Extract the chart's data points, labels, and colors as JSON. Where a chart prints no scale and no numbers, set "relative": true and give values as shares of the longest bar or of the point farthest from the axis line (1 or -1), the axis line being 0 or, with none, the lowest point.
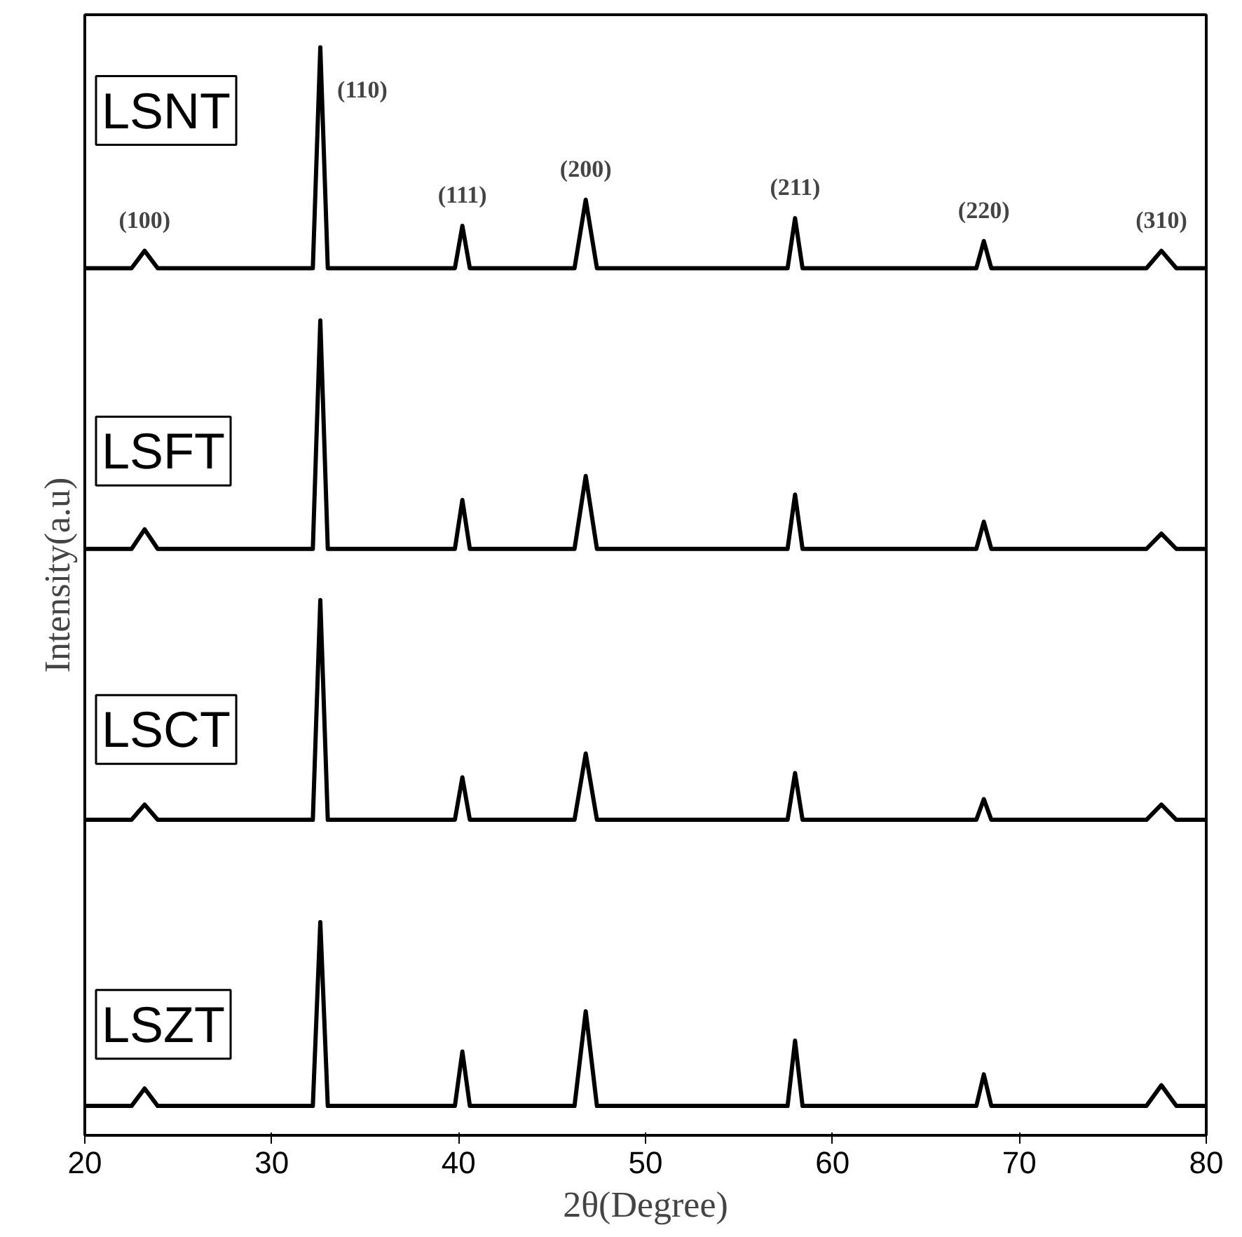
{
  "chart_data": {
    "type": "line",
    "relative": true,
    "xlabel": "2θ(Degree)",
    "ylabel": "Intensity(a.u)",
    "xlim": [
      20,
      80
    ],
    "xticks": [
      20,
      30,
      40,
      50,
      60,
      70,
      80
    ],
    "grid": false,
    "legend": false,
    "marker": "none",
    "line_style": "solid",
    "x": [
      20,
      22.5,
      23.2,
      23.9,
      32.2,
      32.6,
      33.0,
      39.8,
      40.2,
      40.6,
      46.2,
      46.8,
      47.4,
      57.6,
      58.0,
      58.4,
      67.7,
      68.1,
      68.5,
      76.8,
      77.6,
      78.4,
      80
    ],
    "series": [
      {
        "name": "LSNT",
        "color": "#000000",
        "values": [
          0.797,
          0.797,
          0.813,
          0.797,
          0.797,
          1.0,
          0.797,
          0.797,
          0.836,
          0.797,
          0.797,
          0.86,
          0.797,
          0.797,
          0.843,
          0.797,
          0.797,
          0.822,
          0.797,
          0.797,
          0.813,
          0.797,
          0.797
        ]
      },
      {
        "name": "LSFT",
        "color": "#000000",
        "values": [
          0.539,
          0.539,
          0.557,
          0.539,
          0.539,
          0.749,
          0.539,
          0.539,
          0.584,
          0.539,
          0.539,
          0.606,
          0.539,
          0.539,
          0.589,
          0.539,
          0.539,
          0.564,
          0.539,
          0.539,
          0.553,
          0.539,
          0.539
        ]
      },
      {
        "name": "LSCT",
        "color": "#000000",
        "values": [
          0.29,
          0.29,
          0.304,
          0.29,
          0.29,
          0.492,
          0.29,
          0.29,
          0.329,
          0.29,
          0.29,
          0.351,
          0.29,
          0.29,
          0.333,
          0.29,
          0.29,
          0.309,
          0.29,
          0.29,
          0.304,
          0.29,
          0.29
        ]
      },
      {
        "name": "LSZT",
        "color": "#000000",
        "values": [
          0.027,
          0.027,
          0.043,
          0.027,
          0.027,
          0.196,
          0.027,
          0.027,
          0.077,
          0.027,
          0.027,
          0.114,
          0.027,
          0.027,
          0.087,
          0.027,
          0.027,
          0.056,
          0.027,
          0.027,
          0.046,
          0.027,
          0.027
        ]
      }
    ],
    "annotations": [
      {
        "text": "(100)",
        "x": 23.2,
        "y": 0.813
      },
      {
        "text": "(110)",
        "x": 32.6,
        "y": 1.0
      },
      {
        "text": "(111)",
        "x": 40.2,
        "y": 0.836
      },
      {
        "text": "(200)",
        "x": 46.8,
        "y": 0.86
      },
      {
        "text": "(211)",
        "x": 58.0,
        "y": 0.843
      },
      {
        "text": "(220)",
        "x": 68.1,
        "y": 0.822
      },
      {
        "text": "(310)",
        "x": 77.6,
        "y": 0.813
      }
    ]
  }
}
